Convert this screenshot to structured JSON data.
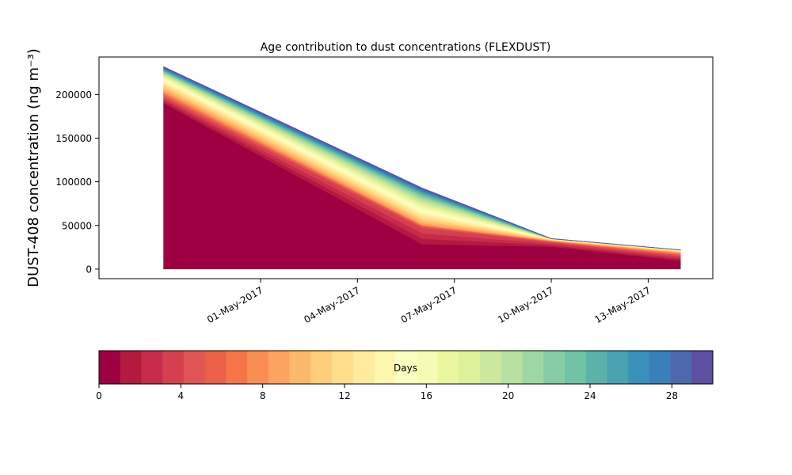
{
  "chart_data": [
    {
      "type": "area",
      "stacked": true,
      "title": "Age contribution to dust concentrations (FLEXDUST)",
      "ylabel": "DUST-408 concentration (ng m⁻³)",
      "xlabel": "",
      "x": [
        "2017-04-28",
        "2017-05-06",
        "2017-05-10",
        "2017-05-14"
      ],
      "xticks": [
        "01-May-2017",
        "04-May-2017",
        "07-May-2017",
        "10-May-2017",
        "13-May-2017"
      ],
      "xtick_dates": [
        "2017-05-01",
        "2017-05-04",
        "2017-05-07",
        "2017-05-10",
        "2017-05-13"
      ],
      "xlim": [
        "2017-04-26",
        "2017-05-15"
      ],
      "ylim": [
        -11000,
        243000
      ],
      "yticks": [
        0,
        50000,
        100000,
        150000,
        200000
      ],
      "ytick_labels": [
        "0",
        "50000",
        "100000",
        "150000",
        "200000"
      ],
      "grid": false,
      "total": [
        232000,
        93000,
        35000,
        22000
      ],
      "age_profiles": {
        "description_note": "",
        "cumulative_by_age_bin_fraction": [
          [
            0.81,
            0.24,
            0.69,
            0.36
          ],
          [
            0.85,
            0.52,
            0.89,
            0.7
          ],
          [
            0.88,
            0.55,
            0.93,
            0.86
          ],
          [
            0.92,
            0.66,
            0.97,
            0.95
          ],
          [
            0.95,
            0.78,
            0.985,
            0.98
          ],
          [
            0.97,
            0.88,
            0.99,
            0.99
          ],
          [
            0.985,
            0.95,
            0.995,
            0.995
          ],
          [
            1.0,
            1.0,
            1.0,
            1.0
          ]
        ]
      }
    },
    {
      "type": "colorbar",
      "label": "Days",
      "range": [
        0,
        30
      ],
      "ticks": [
        0,
        4,
        8,
        12,
        16,
        20,
        24,
        28
      ],
      "tick_labels": [
        "0",
        "4",
        "8",
        "12",
        "16",
        "20",
        "24",
        "28"
      ],
      "colormap": "Spectral",
      "colors": [
        "#9e0142",
        "#b4193f",
        "#c72b49",
        "#d5404e",
        "#e05555",
        "#eb6048",
        "#f57547",
        "#f88e53",
        "#fba35f",
        "#fdb96a",
        "#fdcd7a",
        "#fedd8b",
        "#feeb9d",
        "#fff6ae",
        "#fcfec1",
        "#f6fbb3",
        "#eaf79f",
        "#dcf199",
        "#cbe99d",
        "#b6e1a1",
        "#9fd7a3",
        "#86cda5",
        "#71c3a5",
        "#5cb1a9",
        "#4aa2b0",
        "#3990bb",
        "#3980b9",
        "#4d68ad",
        "#5e4fa2"
      ]
    }
  ]
}
